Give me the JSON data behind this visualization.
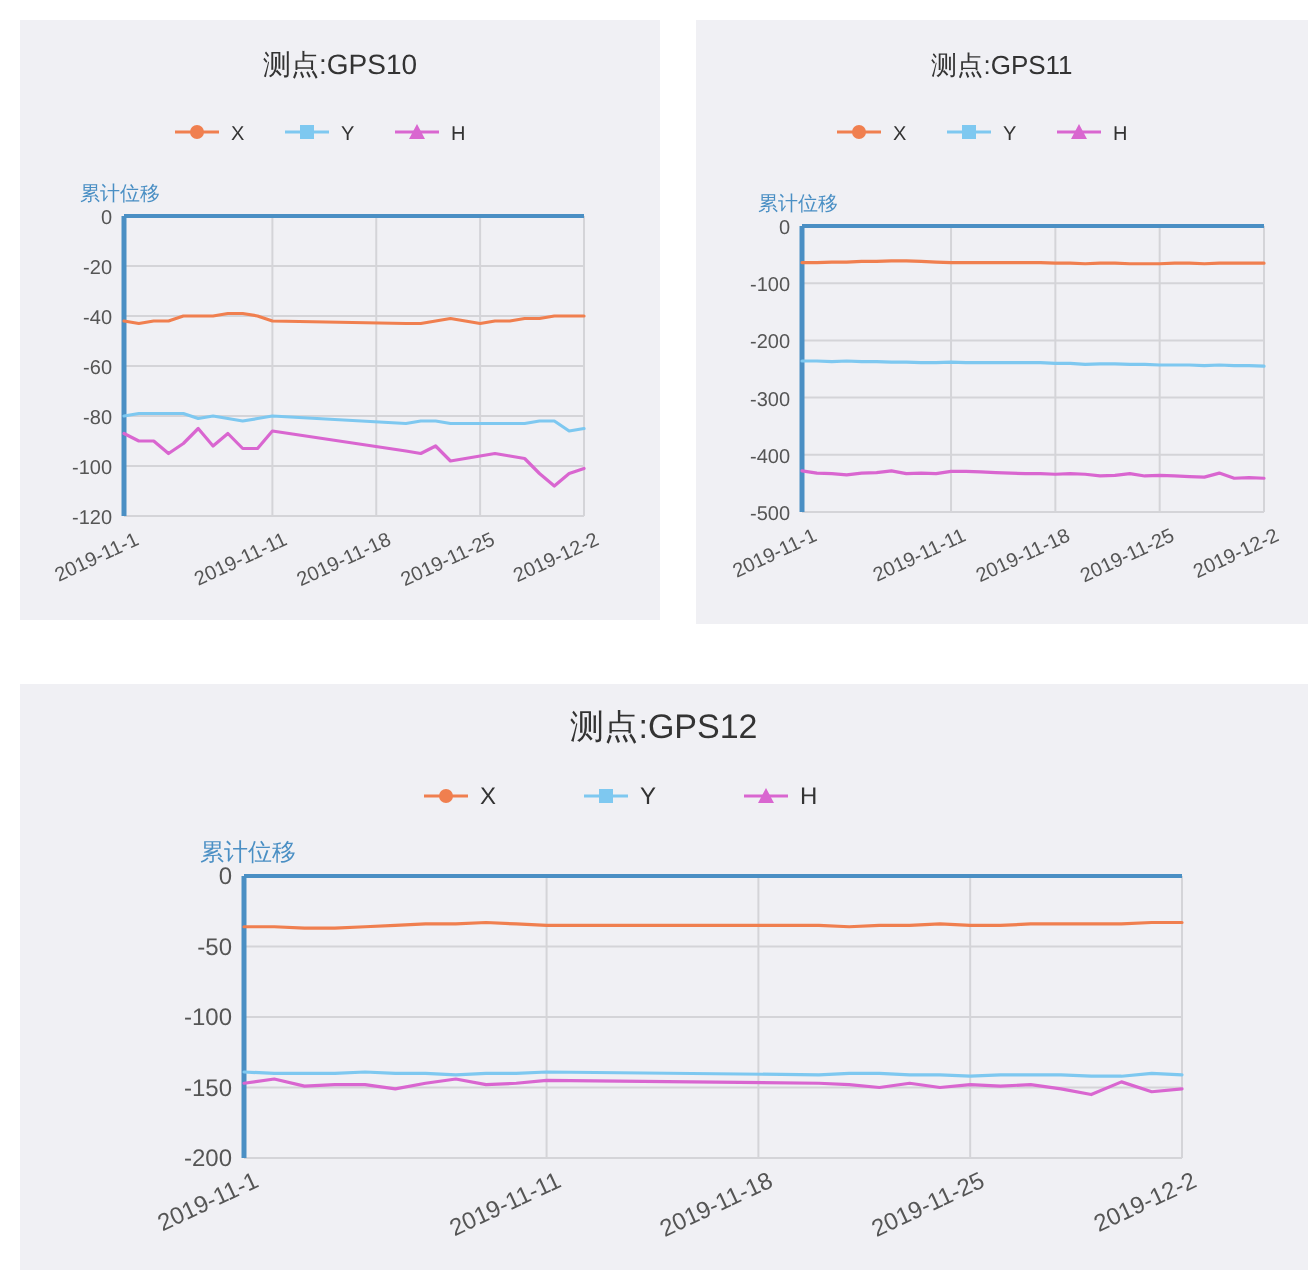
{
  "chart_data": [
    {
      "type": "line",
      "title": "测点:GPS10",
      "ylabel": "累计位移",
      "legend": "top",
      "grid": true,
      "line_style": "solid",
      "x": [
        "2019-11-01",
        "2019-11-02",
        "2019-11-03",
        "2019-11-04",
        "2019-11-05",
        "2019-11-06",
        "2019-11-07",
        "2019-11-08",
        "2019-11-09",
        "2019-11-10",
        "2019-11-11",
        "2019-11-20",
        "2019-11-21",
        "2019-11-22",
        "2019-11-23",
        "2019-11-24",
        "2019-11-25",
        "2019-11-26",
        "2019-11-27",
        "2019-11-28",
        "2019-11-29",
        "2019-11-30",
        "2019-12-01",
        "2019-12-02"
      ],
      "xlim": [
        "2019-11-01",
        "2019-12-02"
      ],
      "xticks": [
        {
          "value": "2019-11-01",
          "label": "2019-11-1"
        },
        {
          "value": "2019-11-11",
          "label": "2019-11-11"
        },
        {
          "value": "2019-11-18",
          "label": "2019-11-18"
        },
        {
          "value": "2019-11-25",
          "label": "2019-11-25"
        },
        {
          "value": "2019-12-02",
          "label": "2019-12-2"
        }
      ],
      "ylim": [
        -120,
        0
      ],
      "yticks": [
        0,
        -20,
        -40,
        -60,
        -80,
        -100,
        -120
      ],
      "series": [
        {
          "name": "X",
          "color": "#f07f4f",
          "values": [
            -42,
            -43,
            -42,
            -42,
            -40,
            -40,
            -40,
            -39,
            -39,
            -40,
            -42,
            -43,
            -43,
            -42,
            -41,
            -42,
            -43,
            -42,
            -42,
            -41,
            -41,
            -40,
            -40,
            -40
          ]
        },
        {
          "name": "Y",
          "color": "#7ec8f0",
          "values": [
            -80,
            -79,
            -79,
            -79,
            -79,
            -81,
            -80,
            -81,
            -82,
            -81,
            -80,
            -83,
            -82,
            -82,
            -83,
            -83,
            -83,
            -83,
            -83,
            -83,
            -82,
            -82,
            -86,
            -85
          ]
        },
        {
          "name": "H",
          "color": "#d966d0",
          "values": [
            -87,
            -90,
            -90,
            -95,
            -91,
            -85,
            -92,
            -87,
            -93,
            -93,
            -86,
            -94,
            -95,
            -92,
            -98,
            -97,
            -96,
            -95,
            -96,
            -97,
            -103,
            -108,
            -103,
            -101
          ]
        }
      ]
    },
    {
      "type": "line",
      "title": "测点:GPS11",
      "ylabel": "累计位移",
      "legend": "top",
      "grid": true,
      "line_style": "solid",
      "x": [
        "2019-11-01",
        "2019-11-02",
        "2019-11-03",
        "2019-11-04",
        "2019-11-05",
        "2019-11-06",
        "2019-11-07",
        "2019-11-08",
        "2019-11-09",
        "2019-11-10",
        "2019-11-11",
        "2019-11-12",
        "2019-11-13",
        "2019-11-14",
        "2019-11-15",
        "2019-11-16",
        "2019-11-17",
        "2019-11-18",
        "2019-11-19",
        "2019-11-20",
        "2019-11-21",
        "2019-11-22",
        "2019-11-23",
        "2019-11-24",
        "2019-11-25",
        "2019-11-26",
        "2019-11-27",
        "2019-11-28",
        "2019-11-29",
        "2019-11-30",
        "2019-12-01",
        "2019-12-02"
      ],
      "xlim": [
        "2019-11-01",
        "2019-12-02"
      ],
      "xticks": [
        {
          "value": "2019-11-01",
          "label": "2019-11-1"
        },
        {
          "value": "2019-11-11",
          "label": "2019-11-11"
        },
        {
          "value": "2019-11-18",
          "label": "2019-11-18"
        },
        {
          "value": "2019-11-25",
          "label": "2019-11-25"
        },
        {
          "value": "2019-12-02",
          "label": "2019-12-2"
        }
      ],
      "ylim": [
        -500,
        0
      ],
      "yticks": [
        0,
        -100,
        -200,
        -300,
        -400,
        -500
      ],
      "series": [
        {
          "name": "X",
          "color": "#f07f4f",
          "values": [
            -64,
            -64,
            -63,
            -63,
            -62,
            -62,
            -61,
            -61,
            -62,
            -63,
            -64,
            -64,
            -64,
            -64,
            -64,
            -64,
            -64,
            -65,
            -65,
            -66,
            -65,
            -65,
            -66,
            -66,
            -66,
            -65,
            -65,
            -66,
            -65,
            -65,
            -65,
            -65
          ]
        },
        {
          "name": "Y",
          "color": "#7ec8f0",
          "values": [
            -236,
            -236,
            -237,
            -236,
            -237,
            -237,
            -238,
            -238,
            -239,
            -239,
            -238,
            -239,
            -239,
            -239,
            -239,
            -239,
            -239,
            -240,
            -240,
            -242,
            -241,
            -241,
            -242,
            -242,
            -243,
            -243,
            -243,
            -244,
            -243,
            -244,
            -244,
            -245
          ]
        },
        {
          "name": "H",
          "color": "#d966d0",
          "values": [
            -428,
            -432,
            -433,
            -435,
            -432,
            -431,
            -428,
            -433,
            -432,
            -433,
            -429,
            -429,
            -430,
            -431,
            -432,
            -433,
            -433,
            -434,
            -433,
            -434,
            -437,
            -436,
            -433,
            -437,
            -436,
            -437,
            -438,
            -439,
            -432,
            -441,
            -440,
            -441
          ]
        }
      ]
    },
    {
      "type": "line",
      "title": "测点:GPS12",
      "ylabel": "累计位移",
      "legend": "top",
      "grid": true,
      "line_style": "solid",
      "x": [
        "2019-11-01",
        "2019-11-02",
        "2019-11-03",
        "2019-11-04",
        "2019-11-05",
        "2019-11-06",
        "2019-11-07",
        "2019-11-08",
        "2019-11-09",
        "2019-11-10",
        "2019-11-11",
        "2019-11-20",
        "2019-11-21",
        "2019-11-22",
        "2019-11-23",
        "2019-11-24",
        "2019-11-25",
        "2019-11-26",
        "2019-11-27",
        "2019-11-28",
        "2019-11-29",
        "2019-11-30",
        "2019-12-01",
        "2019-12-02"
      ],
      "xlim": [
        "2019-11-01",
        "2019-12-02"
      ],
      "xticks": [
        {
          "value": "2019-11-01",
          "label": "2019-11-1"
        },
        {
          "value": "2019-11-11",
          "label": "2019-11-11"
        },
        {
          "value": "2019-11-18",
          "label": "2019-11-18"
        },
        {
          "value": "2019-11-25",
          "label": "2019-11-25"
        },
        {
          "value": "2019-12-02",
          "label": "2019-12-2"
        }
      ],
      "ylim": [
        -200,
        0
      ],
      "yticks": [
        0,
        -50,
        -100,
        -150,
        -200
      ],
      "series": [
        {
          "name": "X",
          "color": "#f07f4f",
          "values": [
            -36,
            -36,
            -37,
            -37,
            -36,
            -35,
            -34,
            -34,
            -33,
            -34,
            -35,
            -35,
            -36,
            -35,
            -35,
            -34,
            -35,
            -35,
            -34,
            -34,
            -34,
            -34,
            -33,
            -33
          ]
        },
        {
          "name": "Y",
          "color": "#7ec8f0",
          "values": [
            -139,
            -140,
            -140,
            -140,
            -139,
            -140,
            -140,
            -141,
            -140,
            -140,
            -139,
            -141,
            -140,
            -140,
            -141,
            -141,
            -142,
            -141,
            -141,
            -141,
            -142,
            -142,
            -140,
            -141
          ]
        },
        {
          "name": "H",
          "color": "#d966d0",
          "values": [
            -147,
            -144,
            -149,
            -148,
            -148,
            -151,
            -147,
            -144,
            -148,
            -147,
            -145,
            -147,
            -148,
            -150,
            -147,
            -150,
            -148,
            -149,
            -148,
            -151,
            -155,
            -146,
            -153,
            -151
          ]
        }
      ]
    }
  ]
}
